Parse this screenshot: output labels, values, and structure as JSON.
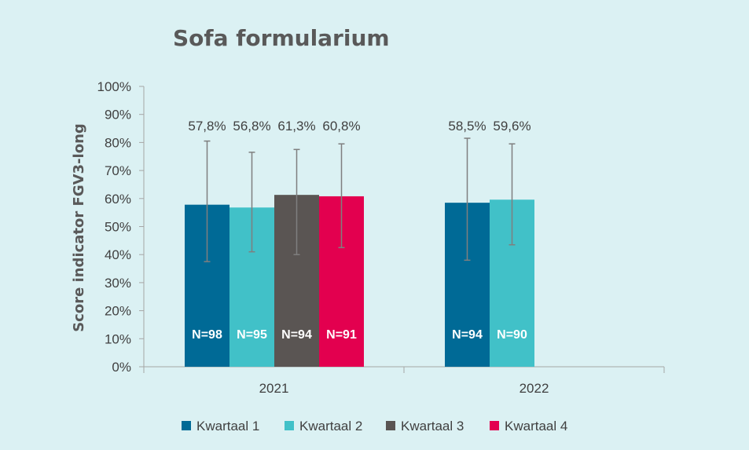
{
  "chart_data": {
    "type": "bar",
    "title": "Sofa formularium",
    "ylabel": "Score indicator FGV3-long",
    "xlabel": "",
    "ylim": [
      0,
      100
    ],
    "y_ticks": [
      "0%",
      "10%",
      "20%",
      "30%",
      "40%",
      "50%",
      "60%",
      "70%",
      "80%",
      "90%",
      "100%"
    ],
    "categories": [
      "2021",
      "2022"
    ],
    "series": [
      {
        "name": "Kwartaal 1",
        "color": "#006a96",
        "values": [
          57.8,
          58.5
        ],
        "labels": [
          "57,8%",
          "58,5%"
        ],
        "n_labels": [
          "N=98",
          "N=94"
        ],
        "err_low": [
          37.5,
          38.0
        ],
        "err_high": [
          80.5,
          81.5
        ]
      },
      {
        "name": "Kwartaal 2",
        "color": "#41c1c8",
        "values": [
          56.8,
          59.6
        ],
        "labels": [
          "56,8%",
          "59,6%"
        ],
        "n_labels": [
          "N=95",
          "N=90"
        ],
        "err_low": [
          41.0,
          43.5
        ],
        "err_high": [
          76.5,
          79.5
        ]
      },
      {
        "name": "Kwartaal 3",
        "color": "#5a5553",
        "values": [
          61.3,
          null
        ],
        "labels": [
          "61,3%",
          ""
        ],
        "n_labels": [
          "N=94",
          ""
        ],
        "err_low": [
          40.0,
          null
        ],
        "err_high": [
          77.5,
          null
        ]
      },
      {
        "name": "Kwartaal 4",
        "color": "#e3004f",
        "values": [
          60.8,
          null
        ],
        "labels": [
          "60,8%",
          ""
        ],
        "n_labels": [
          "N=91",
          ""
        ],
        "err_low": [
          42.5,
          null
        ],
        "err_high": [
          79.5,
          null
        ]
      }
    ],
    "legend_position": "bottom"
  }
}
